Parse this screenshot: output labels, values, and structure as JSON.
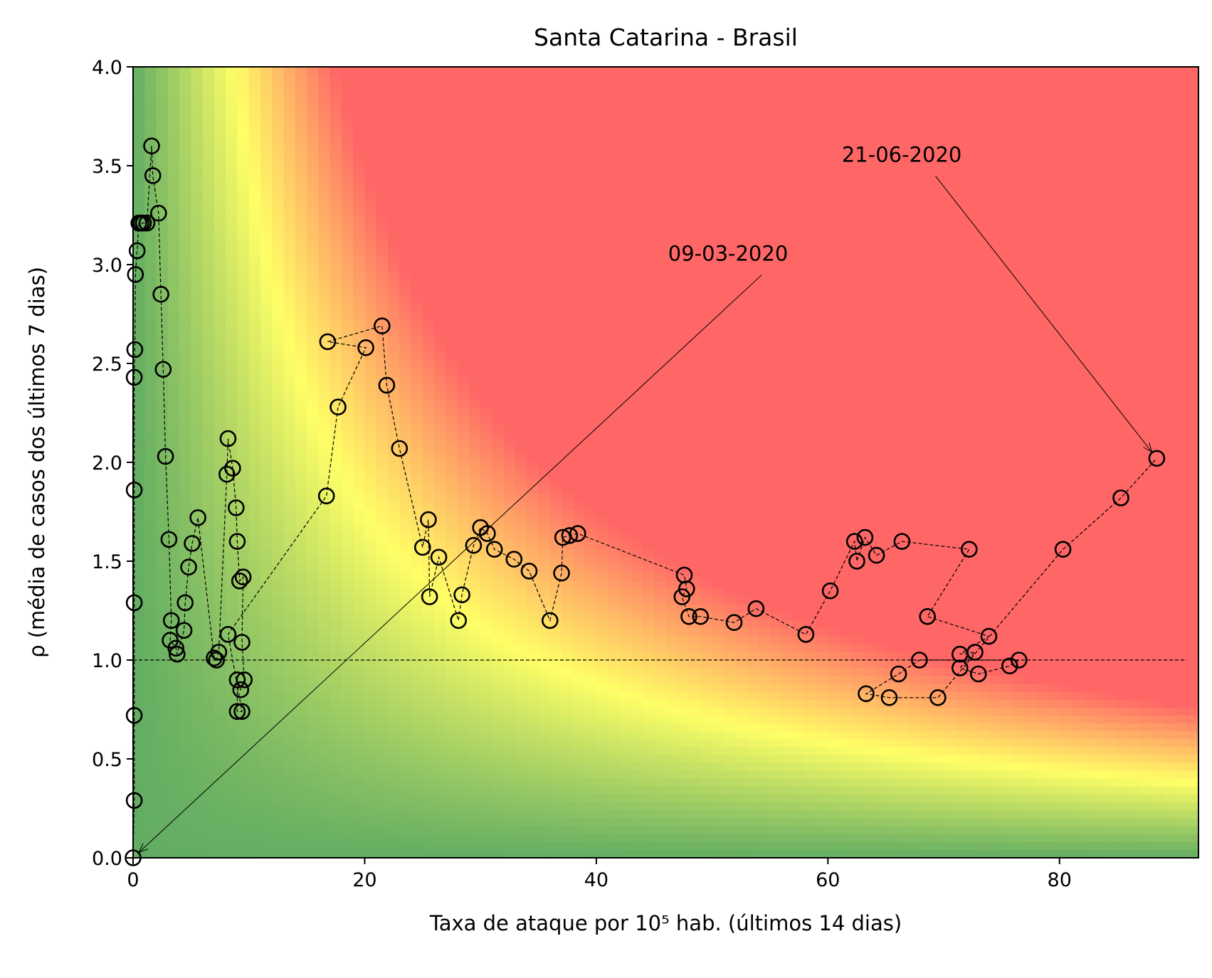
{
  "chart_data": {
    "type": "scatter",
    "title": "Santa Catarina - Brasil",
    "xlabel": "Taxa de ataque por 10⁵ hab. (últimos 14 dias)",
    "ylabel": "ρ (média de casos dos últimos 7 dias)",
    "xlim": [
      0,
      92
    ],
    "ylim": [
      0,
      4
    ],
    "xticks": [
      0,
      20,
      40,
      60,
      80
    ],
    "yticks": [
      0.0,
      0.5,
      1.0,
      1.5,
      2.0,
      2.5,
      3.0,
      3.5,
      4.0
    ],
    "xtick_labels": [
      "0",
      "20",
      "40",
      "60",
      "80"
    ],
    "ytick_labels": [
      "0.0",
      "0.5",
      "1.0",
      "1.5",
      "2.0",
      "2.5",
      "3.0",
      "3.5",
      "4.0"
    ],
    "reference_line_y": 1.0,
    "background": "risk heatmap: green (low), yellow (medium), red (high) as a function of attack rate × ρ",
    "colors": {
      "low": "#63ad63",
      "mid": "#ffff66",
      "high": "#ff6666",
      "marker_edge": "#000000"
    },
    "series": [
      {
        "points": [
          [
            0.0,
            0.0
          ],
          [
            0.1,
            0.29
          ],
          [
            0.1,
            0.72
          ],
          [
            0.1,
            1.29
          ],
          [
            0.1,
            1.86
          ],
          [
            0.1,
            2.43
          ],
          [
            0.15,
            2.57
          ],
          [
            0.2,
            2.95
          ],
          [
            0.35,
            3.07
          ],
          [
            0.5,
            3.21
          ],
          [
            0.7,
            3.21
          ],
          [
            0.9,
            3.21
          ],
          [
            1.2,
            3.21
          ],
          [
            1.6,
            3.6
          ],
          [
            1.7,
            3.45
          ],
          [
            2.2,
            3.26
          ],
          [
            2.4,
            2.85
          ],
          [
            2.6,
            2.47
          ],
          [
            2.8,
            2.03
          ],
          [
            3.1,
            1.61
          ],
          [
            3.3,
            1.2
          ],
          [
            3.2,
            1.1
          ],
          [
            3.7,
            1.06
          ],
          [
            3.8,
            1.03
          ],
          [
            4.4,
            1.15
          ],
          [
            4.5,
            1.29
          ],
          [
            4.8,
            1.47
          ],
          [
            5.1,
            1.59
          ],
          [
            5.6,
            1.72
          ],
          [
            7.0,
            1.01
          ],
          [
            7.2,
            1.0
          ],
          [
            7.4,
            1.04
          ],
          [
            8.1,
            1.94
          ],
          [
            8.2,
            2.12
          ],
          [
            8.6,
            1.97
          ],
          [
            8.9,
            1.77
          ],
          [
            9.0,
            1.6
          ],
          [
            9.2,
            1.4
          ],
          [
            9.5,
            1.42
          ],
          [
            9.4,
            1.09
          ],
          [
            9.6,
            0.9
          ],
          [
            9.3,
            0.85
          ],
          [
            9.0,
            0.9
          ],
          [
            9.0,
            0.74
          ],
          [
            9.4,
            0.74
          ],
          [
            8.2,
            1.13
          ],
          [
            16.7,
            1.83
          ],
          [
            17.7,
            2.28
          ],
          [
            20.1,
            2.58
          ],
          [
            16.8,
            2.61
          ],
          [
            21.5,
            2.69
          ],
          [
            21.9,
            2.39
          ],
          [
            23.0,
            2.07
          ],
          [
            25.0,
            1.57
          ],
          [
            25.5,
            1.71
          ],
          [
            25.6,
            1.32
          ],
          [
            26.4,
            1.52
          ],
          [
            28.1,
            1.2
          ],
          [
            28.4,
            1.33
          ],
          [
            29.4,
            1.58
          ],
          [
            30.0,
            1.67
          ],
          [
            30.6,
            1.64
          ],
          [
            31.2,
            1.56
          ],
          [
            32.9,
            1.51
          ],
          [
            34.2,
            1.45
          ],
          [
            36.0,
            1.2
          ],
          [
            37.0,
            1.44
          ],
          [
            37.1,
            1.62
          ],
          [
            37.7,
            1.63
          ],
          [
            38.4,
            1.64
          ],
          [
            47.6,
            1.43
          ],
          [
            47.8,
            1.36
          ],
          [
            47.4,
            1.32
          ],
          [
            48.0,
            1.22
          ],
          [
            49.0,
            1.22
          ],
          [
            51.9,
            1.19
          ],
          [
            53.8,
            1.26
          ],
          [
            58.1,
            1.13
          ],
          [
            60.2,
            1.35
          ],
          [
            62.3,
            1.6
          ],
          [
            62.5,
            1.5
          ],
          [
            63.2,
            1.62
          ],
          [
            64.2,
            1.53
          ],
          [
            66.4,
            1.6
          ],
          [
            72.2,
            1.56
          ],
          [
            68.6,
            1.22
          ],
          [
            73.9,
            1.12
          ],
          [
            71.4,
            1.03
          ],
          [
            72.7,
            1.04
          ],
          [
            71.4,
            0.96
          ],
          [
            73.0,
            0.93
          ],
          [
            75.7,
            0.97
          ],
          [
            76.5,
            1.0
          ],
          [
            67.9,
            1.0
          ],
          [
            66.1,
            0.93
          ],
          [
            63.3,
            0.83
          ],
          [
            65.3,
            0.81
          ],
          [
            69.5,
            0.81
          ],
          [
            80.3,
            1.56
          ],
          [
            85.3,
            1.82
          ],
          [
            88.4,
            2.02
          ]
        ]
      }
    ],
    "annotations": [
      {
        "text": "09-03-2020",
        "xy": [
          0.0,
          0.0
        ],
        "text_xy": [
          46.2,
          3.02
        ]
      },
      {
        "text": "21-06-2020",
        "xy": [
          88.4,
          2.02
        ],
        "text_xy": [
          61.2,
          3.52
        ]
      }
    ]
  }
}
